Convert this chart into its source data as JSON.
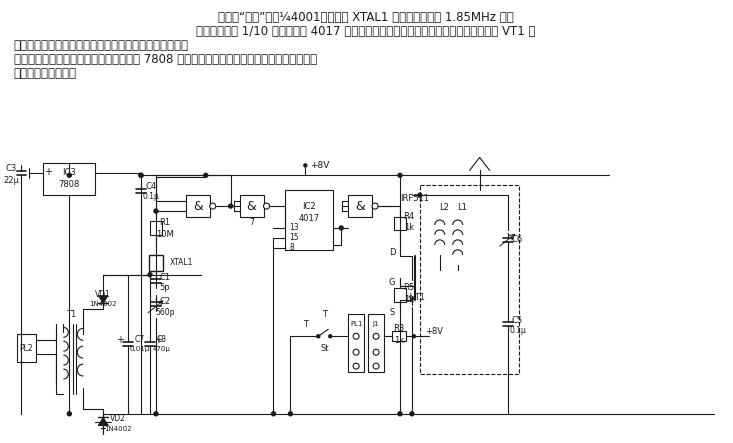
{
  "line1": "电路中“与非”门（¼4001）、晶振 XTAL1 和阻容元件构成 1.85MHz 方波",
  "line2": "振荡器，后接 1/10 分频器（由 4017 十进制计数器构成）。输出信号通过场效应晶体管 VT1 放",
  "line3": "大，由调谐网络（虚线框所示）和天线把信号发射出去。",
  "line4": "　　该电路信号部分电源由稳压集成电路 7808 供给，功率放大部分则直接由交流电源降压、",
  "line5": "整流、滤波后供给。",
  "bg": "#ffffff",
  "lc": "#1a1a1a",
  "dpi": 100,
  "fw": 7.33,
  "fh": 4.43
}
